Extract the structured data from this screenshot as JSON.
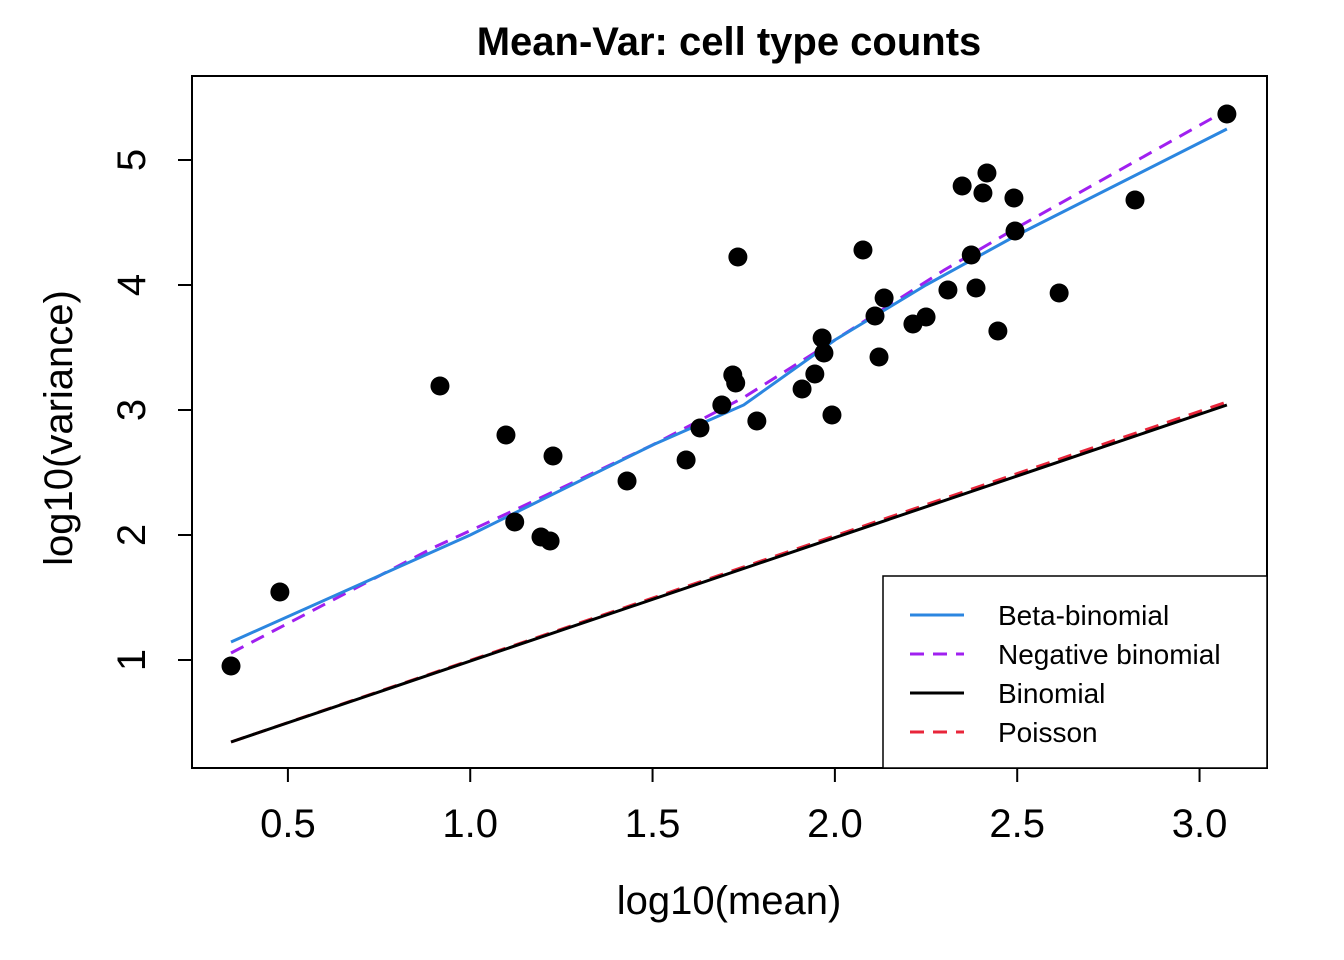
{
  "chart_data": {
    "type": "scatter",
    "title": "Mean-Var: cell type counts",
    "xlabel": "log10(mean)",
    "ylabel": "log10(variance)",
    "xlim": [
      0.237,
      3.185
    ],
    "ylim": [
      0.136,
      5.672
    ],
    "xticks": [
      0.5,
      1.0,
      1.5,
      2.0,
      2.5,
      3.0
    ],
    "xtick_labels": [
      "0.5",
      "1.0",
      "1.5",
      "2.0",
      "2.5",
      "3.0"
    ],
    "yticks": [
      1,
      2,
      3,
      4,
      5
    ],
    "ytick_labels": [
      "1",
      "2",
      "3",
      "4",
      "5"
    ],
    "grid": false,
    "legend_position": "bottom-right",
    "points": [
      [
        0.344,
        0.952
      ],
      [
        0.478,
        1.544
      ],
      [
        0.917,
        3.192
      ],
      [
        1.098,
        2.8
      ],
      [
        1.122,
        2.104
      ],
      [
        1.194,
        1.984
      ],
      [
        1.219,
        1.952
      ],
      [
        1.227,
        2.632
      ],
      [
        1.43,
        2.432
      ],
      [
        1.592,
        2.6
      ],
      [
        1.63,
        2.856
      ],
      [
        1.69,
        3.04
      ],
      [
        1.72,
        3.28
      ],
      [
        1.728,
        3.216
      ],
      [
        1.734,
        4.224
      ],
      [
        1.786,
        2.912
      ],
      [
        1.91,
        3.168
      ],
      [
        1.945,
        3.288
      ],
      [
        1.965,
        3.576
      ],
      [
        1.97,
        3.456
      ],
      [
        1.992,
        2.96
      ],
      [
        2.077,
        4.28
      ],
      [
        2.11,
        3.752
      ],
      [
        2.121,
        3.424
      ],
      [
        2.135,
        3.896
      ],
      [
        2.214,
        3.688
      ],
      [
        2.25,
        3.744
      ],
      [
        2.31,
        3.96
      ],
      [
        2.349,
        4.792
      ],
      [
        2.374,
        4.24
      ],
      [
        2.387,
        3.976
      ],
      [
        2.406,
        4.736
      ],
      [
        2.417,
        4.896
      ],
      [
        2.447,
        3.632
      ],
      [
        2.491,
        4.696
      ],
      [
        2.494,
        4.432
      ],
      [
        2.615,
        3.936
      ],
      [
        2.823,
        4.68
      ],
      [
        3.075,
        5.368
      ]
    ],
    "series": [
      {
        "name": "Beta-binomial",
        "color": "#2b86e0",
        "dash": false,
        "x": [
          0.344,
          1.0,
          1.5,
          1.75,
          2.0,
          2.25,
          2.5,
          3.075
        ],
        "y": [
          1.144,
          2.0,
          2.72,
          3.04,
          3.56,
          4.0,
          4.4,
          5.248
        ]
      },
      {
        "name": "Negative binomial",
        "color": "#a020f0",
        "dash": true,
        "x": [
          0.344,
          0.9,
          1.1,
          1.5,
          1.75,
          2.0,
          2.3,
          2.5,
          3.075
        ],
        "y": [
          1.056,
          1.9,
          2.17,
          2.72,
          3.1,
          3.56,
          4.12,
          4.46,
          5.4
        ]
      },
      {
        "name": "Binomial",
        "color": "#000000",
        "dash": false,
        "x": [
          0.344,
          3.075
        ],
        "y": [
          0.344,
          3.04
        ]
      },
      {
        "name": "Poisson",
        "color": "#e8253a",
        "dash": true,
        "x": [
          0.344,
          3.075
        ],
        "y": [
          0.344,
          3.064
        ]
      }
    ]
  }
}
